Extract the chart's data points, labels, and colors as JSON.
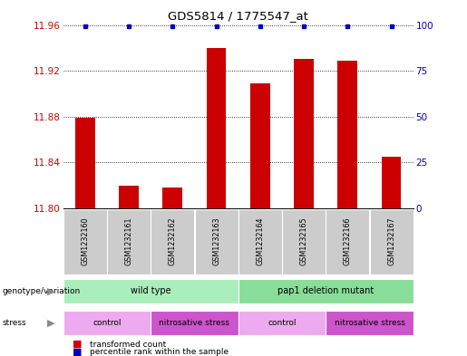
{
  "title": "GDS5814 / 1775547_at",
  "samples": [
    "GSM1232160",
    "GSM1232161",
    "GSM1232162",
    "GSM1232163",
    "GSM1232164",
    "GSM1232165",
    "GSM1232166",
    "GSM1232167"
  ],
  "transformed_counts": [
    11.879,
    11.82,
    11.818,
    11.94,
    11.909,
    11.93,
    11.929,
    11.845
  ],
  "percentile_ranks": [
    99,
    99,
    99,
    99,
    99,
    99,
    99,
    99
  ],
  "ylim_left": [
    11.8,
    11.96
  ],
  "ylim_right": [
    0,
    100
  ],
  "yticks_left": [
    11.8,
    11.84,
    11.88,
    11.92,
    11.96
  ],
  "yticks_right": [
    0,
    25,
    50,
    75,
    100
  ],
  "bar_color": "#cc0000",
  "dot_color": "#0000bb",
  "bar_width": 0.45,
  "genotype_groups": [
    {
      "label": "wild type",
      "start": 0,
      "end": 3,
      "color": "#aaeebb"
    },
    {
      "label": "pap1 deletion mutant",
      "start": 4,
      "end": 7,
      "color": "#88dd99"
    }
  ],
  "stress_groups": [
    {
      "label": "control",
      "start": 0,
      "end": 1,
      "color": "#eeaaee"
    },
    {
      "label": "nitrosative stress",
      "start": 2,
      "end": 3,
      "color": "#dd66dd"
    },
    {
      "label": "control",
      "start": 4,
      "end": 5,
      "color": "#eeaaee"
    },
    {
      "label": "nitrosative stress",
      "start": 6,
      "end": 7,
      "color": "#dd66dd"
    }
  ],
  "sample_box_color": "#cccccc",
  "left_label_color": "#cc0000",
  "right_label_color": "#0000bb",
  "title_color": "#000000",
  "background_color": "#ffffff"
}
